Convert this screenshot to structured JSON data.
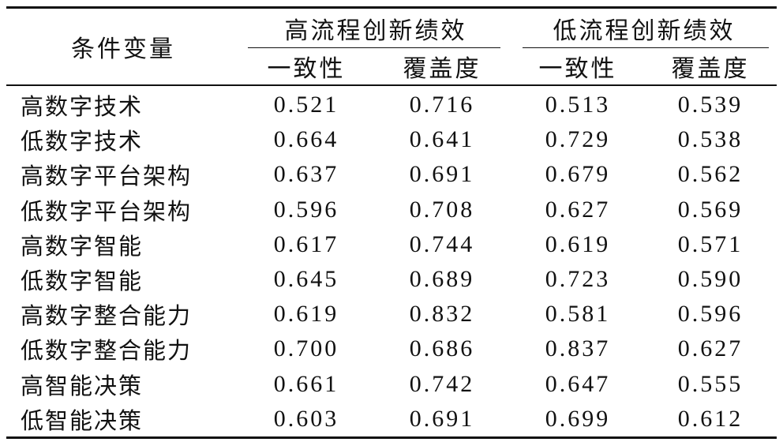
{
  "table": {
    "corner_label": "条件变量",
    "groups": [
      {
        "label": "高流程创新绩效"
      },
      {
        "label": "低流程创新绩效"
      }
    ],
    "sub_headers": [
      "一致性",
      "覆盖度",
      "一致性",
      "覆盖度"
    ],
    "rows": [
      {
        "label": "高数字技术",
        "values": [
          "0.521",
          "0.716",
          "0.513",
          "0.539"
        ]
      },
      {
        "label": "低数字技术",
        "values": [
          "0.664",
          "0.641",
          "0.729",
          "0.538"
        ]
      },
      {
        "label": "高数字平台架构",
        "values": [
          "0.637",
          "0.691",
          "0.679",
          "0.562"
        ]
      },
      {
        "label": "低数字平台架构",
        "values": [
          "0.596",
          "0.708",
          "0.627",
          "0.569"
        ]
      },
      {
        "label": "高数字智能",
        "values": [
          "0.617",
          "0.744",
          "0.619",
          "0.571"
        ]
      },
      {
        "label": "低数字智能",
        "values": [
          "0.645",
          "0.689",
          "0.723",
          "0.590"
        ]
      },
      {
        "label": "高数字整合能力",
        "values": [
          "0.619",
          "0.832",
          "0.581",
          "0.596"
        ]
      },
      {
        "label": "低数字整合能力",
        "values": [
          "0.700",
          "0.686",
          "0.837",
          "0.627"
        ]
      },
      {
        "label": "高智能决策",
        "values": [
          "0.661",
          "0.742",
          "0.647",
          "0.555"
        ]
      },
      {
        "label": "低智能决策",
        "values": [
          "0.603",
          "0.691",
          "0.699",
          "0.612"
        ]
      }
    ]
  }
}
